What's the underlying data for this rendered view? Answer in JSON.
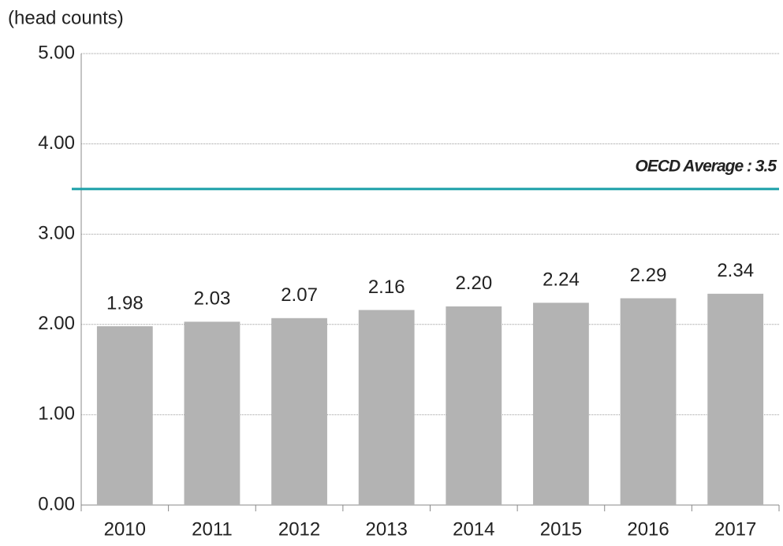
{
  "chart_data": {
    "type": "bar",
    "y_axis_label": "(head counts)",
    "categories": [
      "2010",
      "2011",
      "2012",
      "2013",
      "2014",
      "2015",
      "2016",
      "2017"
    ],
    "values": [
      1.98,
      2.03,
      2.07,
      2.16,
      2.2,
      2.24,
      2.29,
      2.34
    ],
    "value_labels": [
      "1.98",
      "2.03",
      "2.07",
      "2.16",
      "2.20",
      "2.24",
      "2.29",
      "2.34"
    ],
    "color": "#b3b3b3",
    "ylim": [
      0,
      5
    ],
    "yticks": [
      {
        "value": 0,
        "label": "0.00"
      },
      {
        "value": 1,
        "label": "1.00"
      },
      {
        "value": 2,
        "label": "2.00"
      },
      {
        "value": 3,
        "label": "3.00"
      },
      {
        "value": 4,
        "label": "4.00"
      },
      {
        "value": 5,
        "label": "5.00"
      }
    ],
    "grid": true,
    "reference_line": {
      "value": 3.5,
      "label": "OECD Average : 3.5",
      "color": "#1a9fa8"
    }
  }
}
